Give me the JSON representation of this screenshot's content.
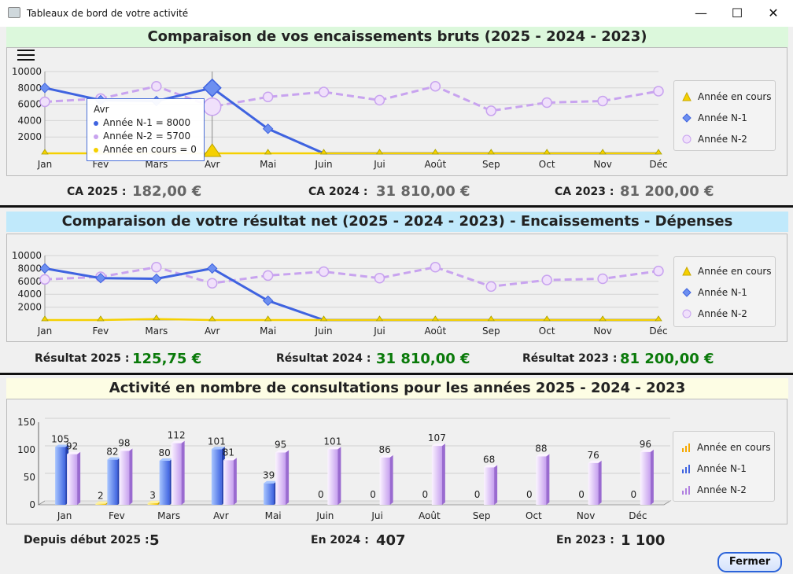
{
  "window": {
    "title": "Tableaux de bord de  votre activité",
    "controls": {
      "minimize": "—",
      "maximize": "☐",
      "close": "✕"
    }
  },
  "colors": {
    "current_year": "#f5d000",
    "n1": "#3f63e0",
    "n2": "#c8a3ef",
    "title1_bg": "#dcf8dc",
    "title2_bg": "#c0e9fb",
    "title3_bg": "#fdfde4"
  },
  "months": [
    "Jan",
    "Fev",
    "Mars",
    "Avr",
    "Mai",
    "Juin",
    "Jui",
    "Août",
    "Sep",
    "Oct",
    "Nov",
    "Déc"
  ],
  "legend": {
    "current": "Année en cours",
    "n1": "Année N-1",
    "n2": "Année N-2"
  },
  "section1": {
    "title": "Comparaison de vos encaissements bruts (2025 - 2024 - 2023)",
    "menu_icon": "hamburger-icon",
    "tooltip": {
      "month": "Avr",
      "n1": "Année N-1 = 8000",
      "n2": "Année N-2 = 5700",
      "current": "Année en cours = 0"
    },
    "stats": [
      {
        "label": "CA 2025 :",
        "value": "182,00 €"
      },
      {
        "label": "CA 2024 :",
        "value": "31 810,00 €"
      },
      {
        "label": "CA 2023 :",
        "value": "81 200,00 €"
      }
    ]
  },
  "section2": {
    "title": "Comparaison de votre résultat net (2025 - 2024 - 2023) - Encaissements - Dépenses",
    "stats": [
      {
        "label": "Résultat 2025 :",
        "value": "125,75 €"
      },
      {
        "label": "Résultat 2024 :",
        "value": "31 810,00 €"
      },
      {
        "label": "Résultat 2023 :",
        "value": "81 200,00 €"
      }
    ]
  },
  "section3": {
    "title": "Activité en nombre de consultations pour les années 2025 - 2024 - 2023",
    "stats": [
      {
        "label": "Depuis début 2025 :",
        "value": "5"
      },
      {
        "label": "En 2024 :",
        "value": "407"
      },
      {
        "label": "En 2023 :",
        "value": "1 100"
      }
    ]
  },
  "chart_data": [
    {
      "type": "line",
      "title": "Comparaison de vos encaissements bruts (2025 - 2024 - 2023)",
      "categories": [
        "Jan",
        "Fev",
        "Mars",
        "Avr",
        "Mai",
        "Juin",
        "Jui",
        "Août",
        "Sep",
        "Oct",
        "Nov",
        "Déc"
      ],
      "yticks": [
        "10000",
        "8000",
        "6000",
        "4000",
        "2000"
      ],
      "ylim": [
        0,
        10000
      ],
      "series": [
        {
          "name": "Année en cours",
          "values": [
            0,
            0,
            0,
            0,
            0,
            0,
            0,
            0,
            0,
            0,
            0,
            0
          ]
        },
        {
          "name": "Année N-1",
          "values": [
            8000,
            6500,
            6400,
            8000,
            3000,
            0,
            0,
            0,
            0,
            0,
            0,
            0
          ]
        },
        {
          "name": "Année N-2",
          "values": [
            6300,
            6700,
            8200,
            5700,
            6900,
            7500,
            6500,
            8200,
            5200,
            6200,
            6400,
            7600
          ]
        }
      ],
      "legend_position": "right"
    },
    {
      "type": "line",
      "title": "Comparaison de votre résultat net (2025 - 2024 - 2023) - Encaissements - Dépenses",
      "categories": [
        "Jan",
        "Fev",
        "Mars",
        "Avr",
        "Mai",
        "Juin",
        "Jui",
        "Août",
        "Sep",
        "Oct",
        "Nov",
        "Déc"
      ],
      "yticks": [
        "10000",
        "8000",
        "6000",
        "4000",
        "2000"
      ],
      "ylim": [
        0,
        10000
      ],
      "series": [
        {
          "name": "Année en cours",
          "values": [
            0,
            0,
            150,
            0,
            0,
            0,
            0,
            0,
            0,
            0,
            0,
            0
          ]
        },
        {
          "name": "Année N-1",
          "values": [
            8000,
            6500,
            6400,
            8000,
            3000,
            0,
            0,
            0,
            0,
            0,
            0,
            0
          ]
        },
        {
          "name": "Année N-2",
          "values": [
            6300,
            6700,
            8200,
            5700,
            6900,
            7500,
            6500,
            8200,
            5200,
            6200,
            6400,
            7600
          ]
        }
      ],
      "legend_position": "right"
    },
    {
      "type": "bar",
      "title": "Activité en nombre de consultations pour les années 2025 - 2024 - 2023",
      "categories": [
        "Jan",
        "Fev",
        "Mars",
        "Avr",
        "Mai",
        "Juin",
        "Jui",
        "Août",
        "Sep",
        "Oct",
        "Nov",
        "Déc"
      ],
      "yticks": [
        "150",
        "100",
        "50",
        "0"
      ],
      "ylim": [
        0,
        150
      ],
      "series": [
        {
          "name": "Année en cours",
          "values": [
            0,
            2,
            3,
            0,
            0,
            0,
            0,
            0,
            0,
            0,
            0,
            0
          ]
        },
        {
          "name": "Année N-1",
          "values": [
            105,
            82,
            80,
            101,
            39,
            0,
            0,
            0,
            0,
            0,
            0,
            0
          ]
        },
        {
          "name": "Année N-2",
          "values": [
            92,
            98,
            112,
            81,
            95,
            101,
            86,
            107,
            68,
            88,
            76,
            96
          ]
        }
      ],
      "legend_position": "right"
    }
  ]
}
